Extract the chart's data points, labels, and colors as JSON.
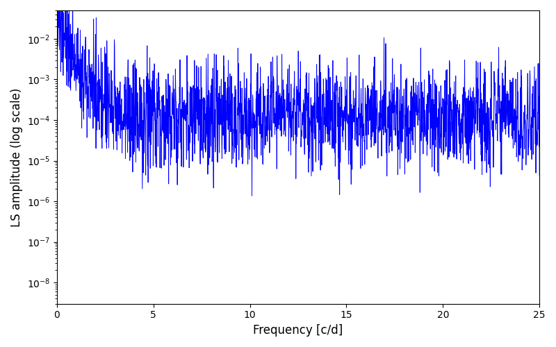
{
  "title": "",
  "xlabel": "Frequency [c/d]",
  "ylabel": "LS amplitude (log scale)",
  "xlim": [
    0,
    25
  ],
  "ylim_log": [
    3e-09,
    0.05
  ],
  "color": "#0000ff",
  "linewidth": 0.7,
  "figsize": [
    8.0,
    5.0
  ],
  "dpi": 100,
  "freq_max": 25.0,
  "n_points": 2000,
  "seed": 137,
  "background_color": "#ffffff"
}
